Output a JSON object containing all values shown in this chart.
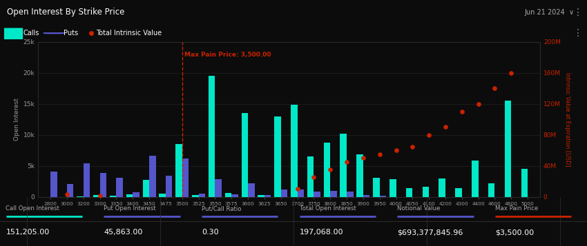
{
  "title": "Open Interest By Strike Price",
  "date_label": "Jun 21 2024  ∨",
  "bg_color": "#0c0c0c",
  "title_bg": "#161616",
  "footer_bg": "#111111",
  "calls_color": "#00e8c8",
  "puts_color": "#5555cc",
  "intrinsic_color": "#cc2200",
  "max_pain_color": "#cc2200",
  "max_pain_price": 3500,
  "strikes": [
    2800,
    3000,
    3200,
    3300,
    3350,
    3400,
    3450,
    3475,
    3500,
    3525,
    3550,
    3575,
    3600,
    3625,
    3650,
    3700,
    3750,
    3800,
    3850,
    3900,
    3950,
    4000,
    4050,
    4100,
    4200,
    4300,
    4400,
    4600,
    4800,
    5000
  ],
  "calls": [
    0,
    0,
    100,
    300,
    200,
    400,
    2700,
    500,
    8500,
    300,
    19500,
    600,
    13500,
    300,
    13000,
    14800,
    6500,
    8700,
    10200,
    6800,
    3100,
    2800,
    1400,
    1600,
    3000,
    1400,
    5900,
    2200,
    15500,
    4500
  ],
  "puts": [
    4100,
    2100,
    5400,
    3800,
    3100,
    700,
    6600,
    3400,
    6200,
    500,
    2900,
    400,
    2200,
    300,
    1200,
    1200,
    900,
    1000,
    800,
    300,
    200,
    0,
    0,
    0,
    0,
    0,
    0,
    0,
    0,
    0
  ],
  "intrinsic_x_idx": [
    1,
    3,
    15,
    16,
    17,
    18,
    19,
    20,
    21,
    22,
    23,
    24,
    25,
    26,
    27,
    28
  ],
  "intrinsic_y": [
    3000000,
    1000000,
    10000000,
    25000000,
    35000000,
    45000000,
    50000000,
    55000000,
    60000000,
    65000000,
    80000000,
    90000000,
    110000000,
    120000000,
    140000000,
    160000000
  ],
  "ylabel_left": "Open Interest",
  "ylabel_right": "Intrinsic Value at Expiration [USD]",
  "ylim_left": [
    0,
    25000
  ],
  "ylim_right": [
    0,
    200000000
  ],
  "yticks_left": [
    0,
    5000,
    10000,
    15000,
    20000,
    25000
  ],
  "yticks_right": [
    0,
    40000000,
    80000000,
    120000000,
    160000000,
    200000000
  ],
  "footer_items": [
    {
      "label": "Call Open Interest",
      "value": "151,205.00",
      "color": "#00e8c8"
    },
    {
      "label": "Put Open Interest",
      "value": "45,863.00",
      "color": "#5555cc"
    },
    {
      "label": "Put/Call Ratio",
      "value": "0.30",
      "color": "#5555cc"
    },
    {
      "label": "Total Open Interest",
      "value": "197,068.00",
      "color": "#5555cc"
    },
    {
      "label": "Notional Value",
      "value": "$693,377,845.96",
      "color": "#5555cc"
    },
    {
      "label": "Max Pain Price",
      "value": "$3,500.00",
      "color": "#cc2200"
    }
  ]
}
